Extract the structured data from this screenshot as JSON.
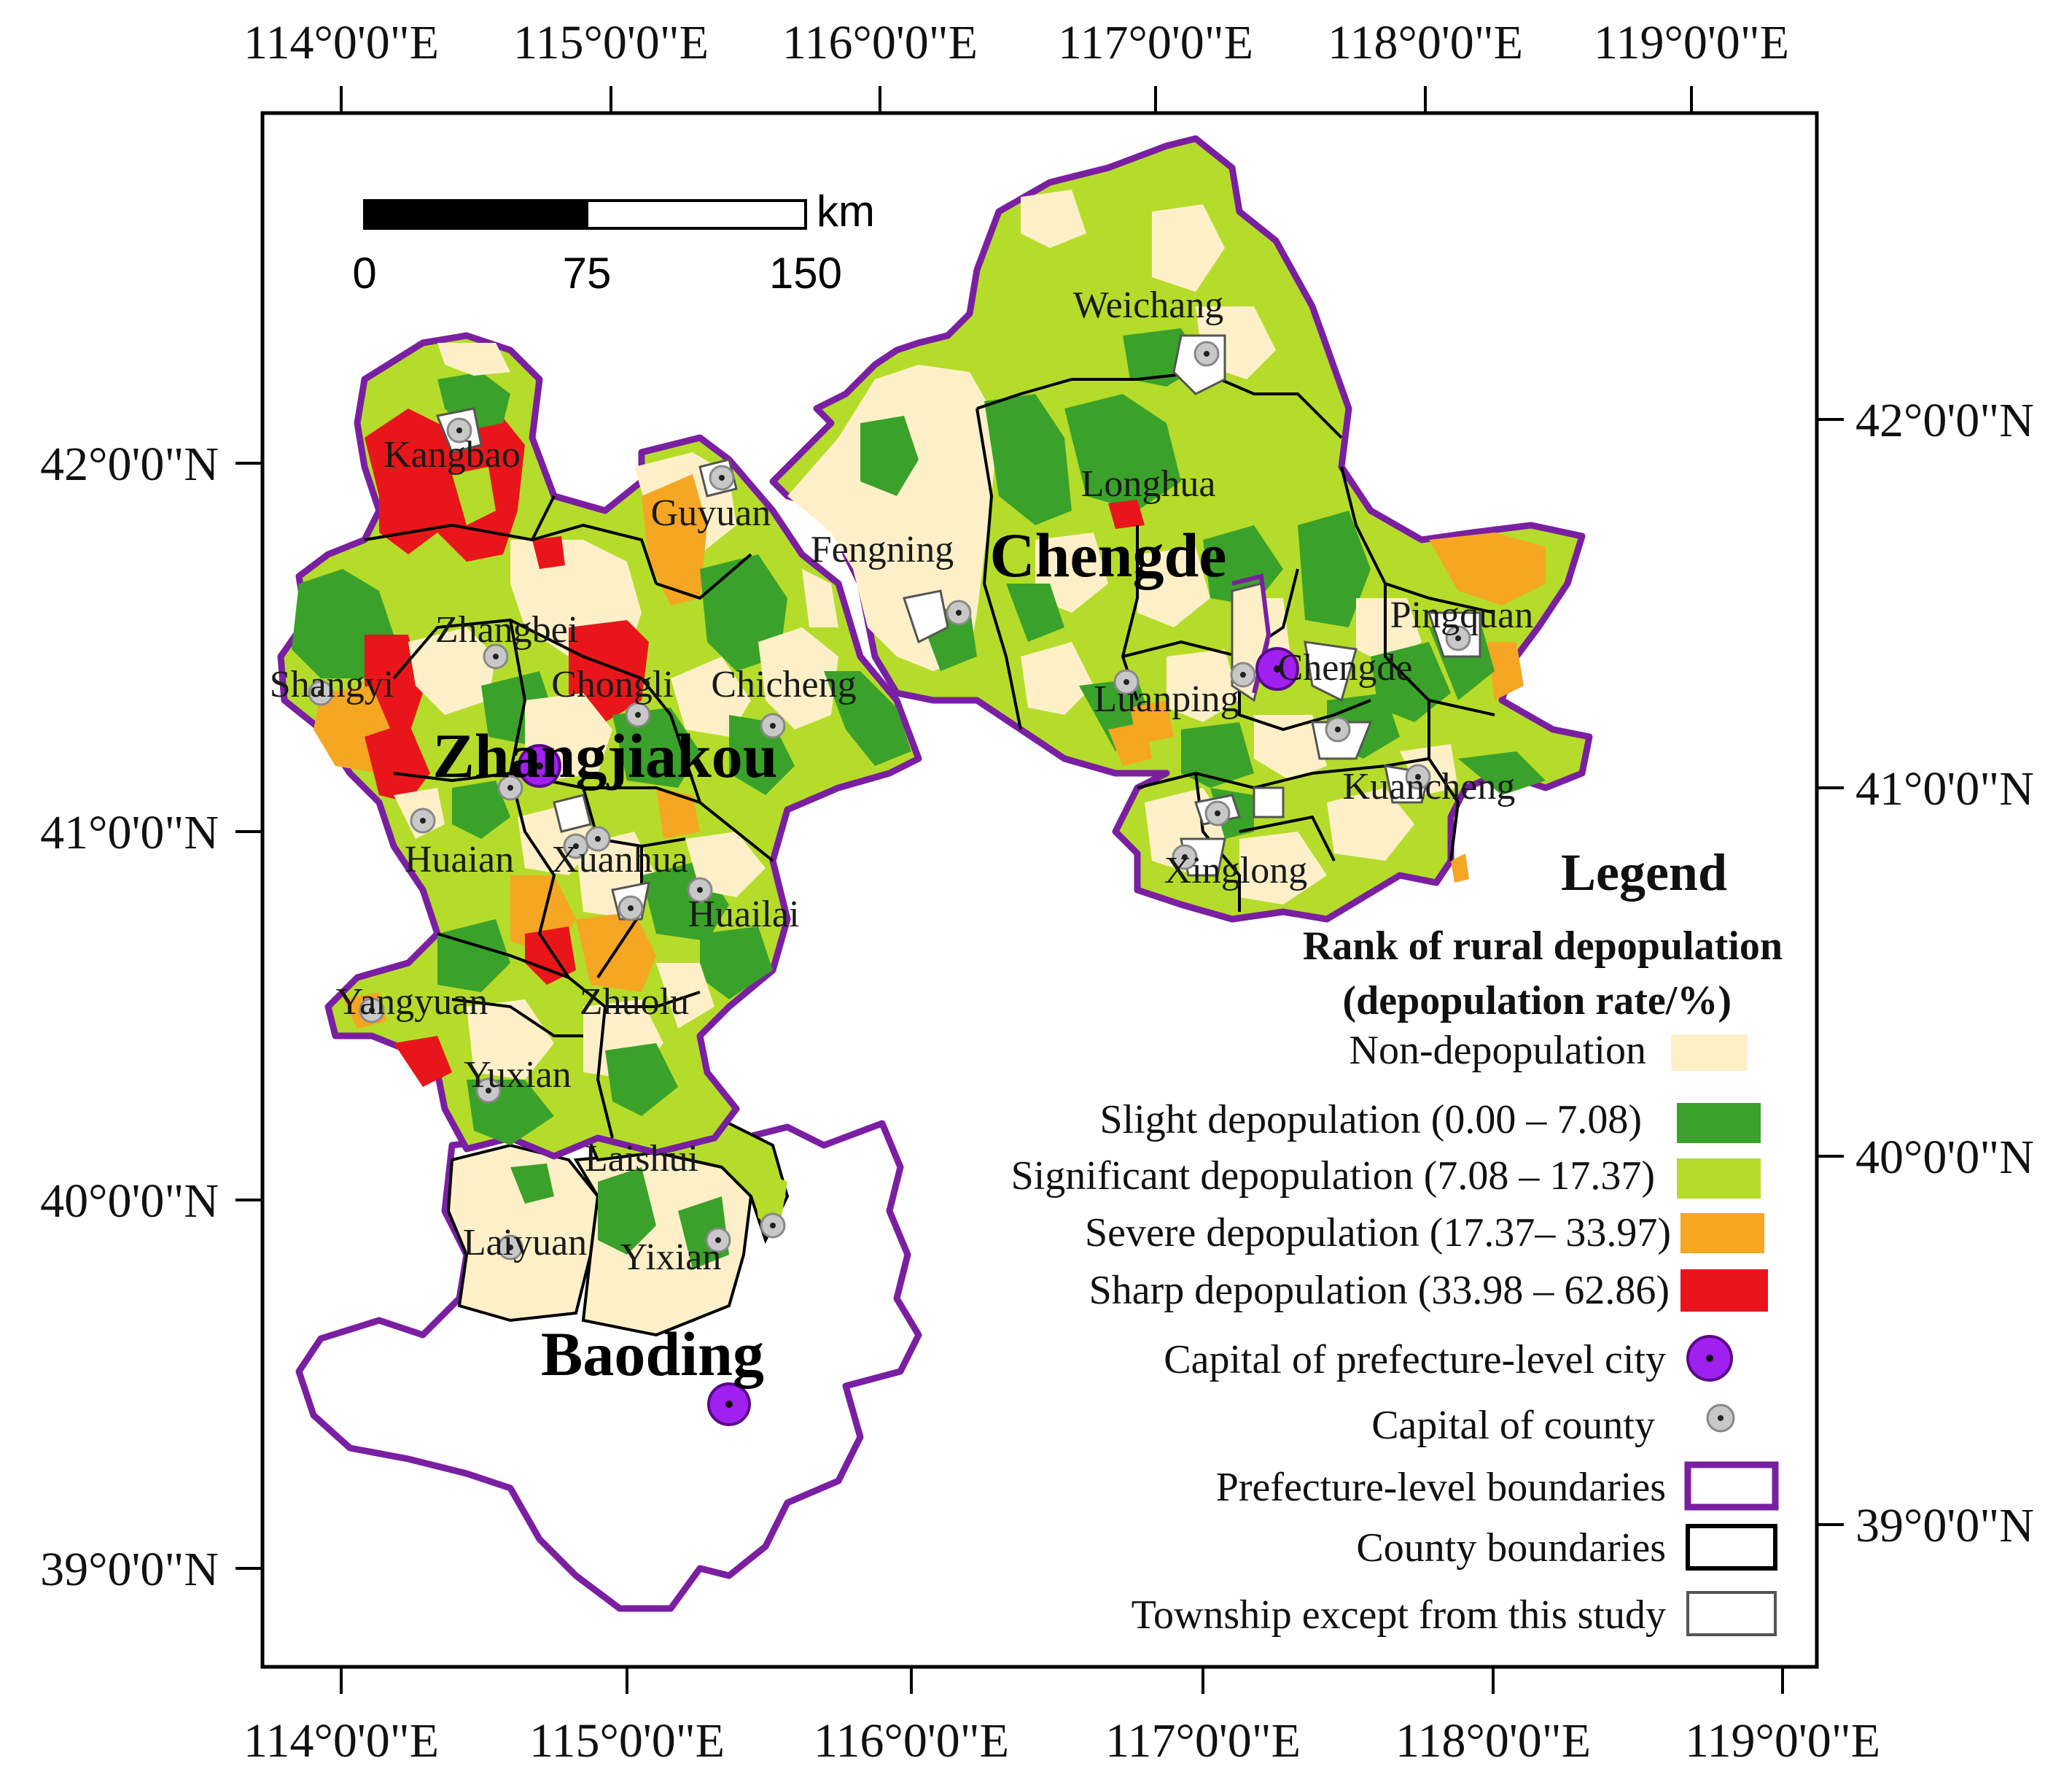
{
  "axes": {
    "top": [
      "114°0'0\"E",
      "115°0'0\"E",
      "116°0'0\"E",
      "117°0'0\"E",
      "118°0'0\"E",
      "119°0'0\"E"
    ],
    "bottom": [
      "114°0'0\"E",
      "115°0'0\"E",
      "116°0'0\"E",
      "117°0'0\"E",
      "118°0'0\"E",
      "119°0'0\"E"
    ],
    "left": [
      "42°0'0\"N",
      "41°0'0\"N",
      "40°0'0\"N",
      "39°0'0\"N"
    ],
    "right": [
      "42°0'0\"N",
      "41°0'0\"N",
      "40°0'0\"N",
      "39°0'0\"N"
    ]
  },
  "scale_bar": {
    "unit": "km",
    "ticks": [
      "0",
      "75",
      "150"
    ]
  },
  "cities": [
    "Chengde",
    "Zhangjiakou",
    "Baoding"
  ],
  "counties": [
    "Weichang",
    "Longhua",
    "Fengning",
    "Pingquan",
    "Chengde",
    "Luanping",
    "Kuancheng",
    "Xinglong",
    "Kangbao",
    "Guyuan",
    "Zhangbei",
    "Shangyi",
    "Chongli",
    "Chicheng",
    "Huaian",
    "Xuanhua",
    "Huailai",
    "Yangyuan",
    "Zhuolu",
    "Yuxian",
    "Laishui",
    "Laiyuan",
    "Yixian"
  ],
  "legend": {
    "title": "Legend",
    "subtitle_line1": "Rank of rural depopulation",
    "subtitle_line2": "(depopulation rate/%)",
    "items": [
      {
        "label": "Non-depopulation",
        "color": "#fdf0c8"
      },
      {
        "label": "Slight depopulation  (0.00 – 7.08)",
        "color": "#3aa22a"
      },
      {
        "label": "Significant depopulation (7.08 – 17.37)",
        "color": "#b5dc2a"
      },
      {
        "label": "Severe depopulation (17.37– 33.97)",
        "color": "#f5a623"
      },
      {
        "label": "Sharp depopulation (33.98 – 62.86)",
        "color": "#e8161a"
      },
      {
        "label": "Capital of prefecture-level city",
        "icon": "prefecture-capital-icon",
        "color": "#a020f0"
      },
      {
        "label": "Capital of county",
        "icon": "county-capital-icon",
        "color": "#c8c8c8"
      },
      {
        "label": "Prefecture-level boundaries",
        "icon": "prefecture-boundary-swatch",
        "color": "#7a1fa2"
      },
      {
        "label": "County boundaries",
        "icon": "county-boundary-swatch",
        "color": "#000000"
      },
      {
        "label": "Township except from this study",
        "icon": "township-excluded-swatch",
        "color": "#555555"
      }
    ]
  }
}
